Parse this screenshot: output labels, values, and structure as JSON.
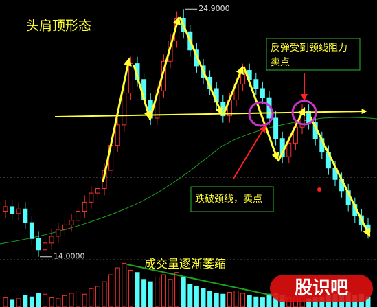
{
  "chart_data": {
    "type": "candlestick",
    "title": "头肩顶形态",
    "open": [
      16.0,
      16.2,
      15.9,
      16.1,
      15.5,
      14.8,
      14.3,
      14.6,
      14.9,
      15.2,
      15.4,
      15.6,
      16.0,
      16.4,
      16.8,
      17.0,
      17.8,
      18.9,
      19.8,
      21.2,
      22.5,
      21.8,
      20.9,
      20.1,
      21.3,
      22.6,
      23.5,
      24.5,
      23.9,
      23.1,
      22.4,
      21.9,
      21.4,
      20.8,
      20.2,
      20.9,
      21.6,
      22.2,
      21.8,
      21.4,
      21.0,
      20.1,
      19.2,
      18.4,
      19.0,
      19.7,
      20.4,
      19.9,
      19.2,
      18.6,
      17.9,
      17.4,
      16.9,
      16.3,
      15.8,
      15.4
    ],
    "high": [
      16.5,
      16.5,
      16.4,
      16.4,
      15.8,
      15.1,
      14.9,
      15.2,
      15.5,
      15.7,
      15.9,
      16.3,
      16.7,
      17.1,
      17.3,
      18.1,
      19.2,
      20.1,
      21.5,
      22.8,
      22.8,
      22.1,
      21.2,
      21.6,
      22.9,
      23.8,
      24.8,
      24.9,
      24.2,
      23.4,
      22.7,
      22.2,
      21.7,
      21.1,
      21.2,
      21.9,
      22.5,
      22.5,
      22.1,
      21.7,
      21.3,
      20.4,
      19.5,
      19.3,
      20.0,
      20.7,
      20.7,
      20.2,
      19.5,
      18.9,
      18.2,
      17.7,
      17.2,
      16.6,
      16.1,
      15.7
    ],
    "low": [
      15.7,
      15.6,
      15.6,
      15.2,
      14.5,
      14.0,
      14.1,
      14.3,
      14.6,
      14.9,
      15.1,
      15.3,
      15.7,
      16.1,
      16.5,
      16.7,
      17.5,
      18.6,
      19.5,
      20.9,
      21.5,
      20.6,
      19.8,
      19.8,
      21.0,
      22.3,
      23.2,
      23.6,
      22.8,
      22.1,
      21.6,
      21.1,
      20.5,
      19.9,
      19.9,
      20.6,
      21.3,
      21.5,
      21.1,
      20.7,
      19.8,
      18.9,
      18.1,
      18.1,
      18.7,
      19.4,
      19.6,
      18.9,
      18.3,
      17.6,
      17.1,
      16.6,
      16.0,
      15.5,
      15.1,
      14.8
    ],
    "close": [
      16.2,
      15.9,
      16.1,
      15.5,
      14.8,
      14.3,
      14.6,
      14.9,
      15.2,
      15.4,
      15.6,
      16.0,
      16.4,
      16.8,
      17.0,
      17.8,
      18.9,
      19.8,
      21.2,
      22.5,
      21.8,
      20.9,
      20.1,
      21.3,
      22.6,
      23.5,
      24.5,
      23.9,
      23.1,
      22.4,
      21.9,
      21.4,
      20.8,
      20.2,
      20.9,
      21.6,
      22.2,
      21.8,
      21.4,
      21.0,
      20.1,
      19.2,
      18.4,
      19.0,
      19.7,
      20.4,
      19.9,
      19.2,
      18.6,
      17.9,
      17.4,
      16.9,
      16.3,
      15.8,
      15.4,
      15.1
    ],
    "volume": [
      20,
      15,
      18,
      25,
      22,
      30,
      28,
      20,
      18,
      25,
      30,
      35,
      28,
      40,
      45,
      55,
      70,
      85,
      95,
      80,
      75,
      60,
      55,
      65,
      70,
      60,
      75,
      65,
      50,
      45,
      40,
      35,
      30,
      28,
      32,
      35,
      30,
      25,
      22,
      20,
      28,
      30,
      25,
      20,
      22,
      25,
      18,
      20,
      22,
      25,
      28,
      30,
      32,
      25,
      28,
      22
    ],
    "ylim": [
      13.9,
      25.3
    ],
    "volume_lim": [
      0,
      100
    ],
    "up_color": "#ff3232",
    "down_color": "#54fcfc",
    "price_labels": [
      {
        "value": 24.9,
        "label": "24.9000"
      },
      {
        "value": 14.0,
        "label": "14.0000"
      }
    ],
    "annotations": [
      "反弹受到颈线阻力",
      "卖点",
      "跌破颈线，卖点",
      "成交量逐渐萎缩"
    ],
    "watermark": "股识吧"
  }
}
